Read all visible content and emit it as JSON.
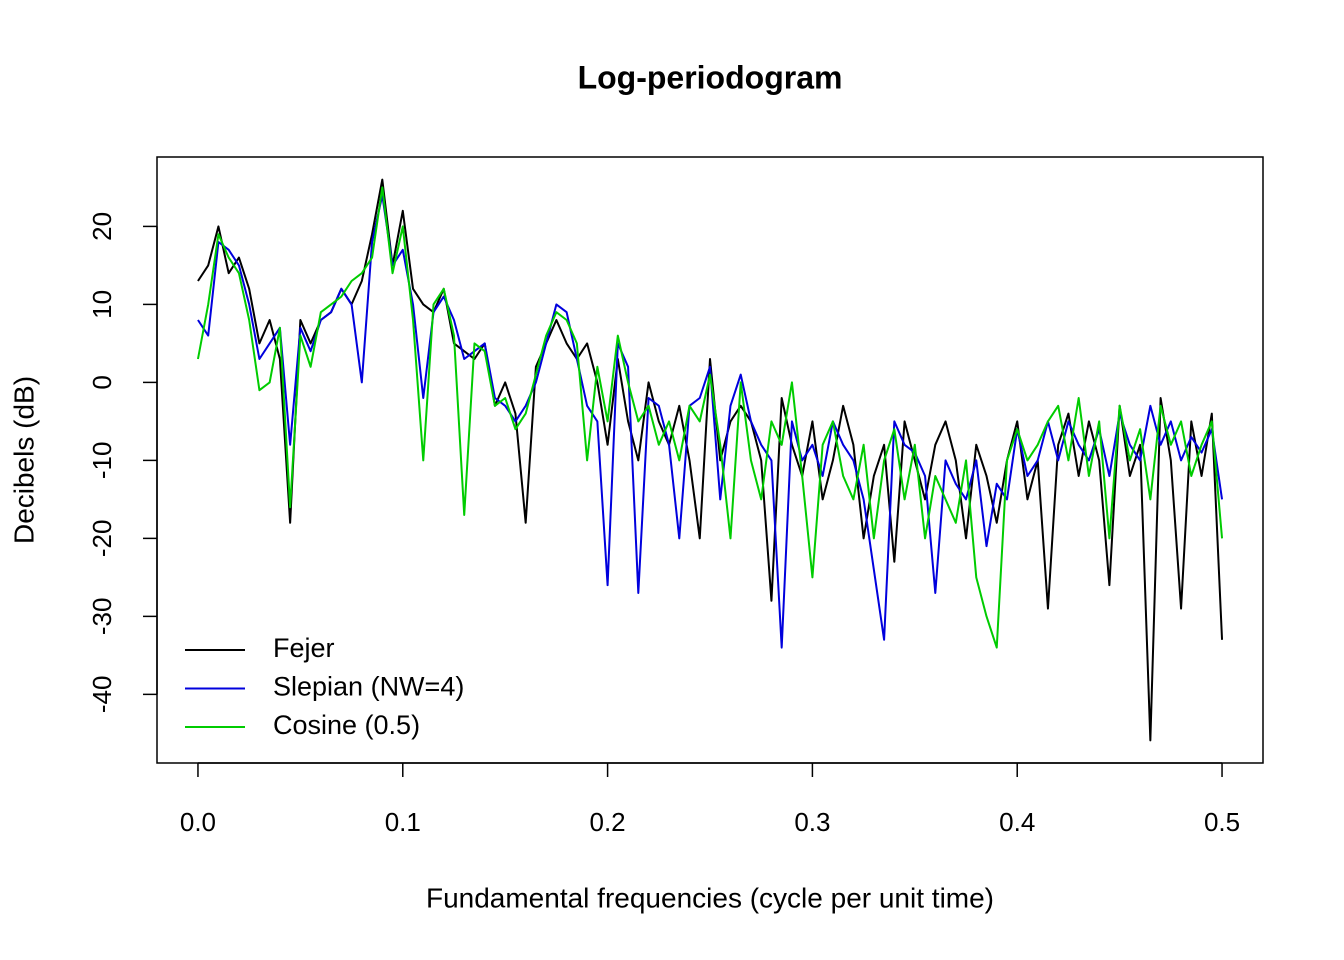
{
  "chart_data": {
    "type": "line",
    "title": "Log-periodogram",
    "x_label": "Fundamental frequencies (cycle per unit time)",
    "y_label": "Decibels (dB)",
    "xlim": [
      -0.02,
      0.52
    ],
    "ylim": [
      -48.8,
      28.9
    ],
    "xticks": [
      {
        "value": 0,
        "label": "0.0"
      },
      0.1,
      0.2,
      0.3,
      0.4,
      0.5
    ],
    "yticks": [
      -40,
      -30,
      -20,
      -10,
      0,
      10,
      20
    ],
    "legend": "bottom-left",
    "x": [
      0,
      0.005,
      0.01,
      0.015,
      0.02,
      0.025,
      0.03,
      0.035,
      0.04,
      0.045,
      0.05,
      0.055,
      0.06,
      0.065,
      0.07,
      0.075,
      0.08,
      0.085,
      0.09,
      0.095,
      0.1,
      0.105,
      0.11,
      0.115,
      0.12,
      0.125,
      0.13,
      0.135,
      0.14,
      0.145,
      0.15,
      0.155,
      0.16,
      0.165,
      0.17,
      0.175,
      0.18,
      0.185,
      0.19,
      0.195,
      0.2,
      0.205,
      0.21,
      0.215,
      0.22,
      0.225,
      0.23,
      0.235,
      0.24,
      0.245,
      0.25,
      0.255,
      0.26,
      0.265,
      0.27,
      0.275,
      0.28,
      0.285,
      0.29,
      0.295,
      0.3,
      0.305,
      0.31,
      0.315,
      0.32,
      0.325,
      0.33,
      0.335,
      0.34,
      0.345,
      0.35,
      0.355,
      0.36,
      0.365,
      0.37,
      0.375,
      0.38,
      0.385,
      0.39,
      0.395,
      0.4,
      0.405,
      0.41,
      0.415,
      0.42,
      0.425,
      0.43,
      0.435,
      0.44,
      0.445,
      0.45,
      0.455,
      0.46,
      0.465,
      0.47,
      0.475,
      0.48,
      0.485,
      0.49,
      0.495,
      0.5
    ],
    "series": [
      {
        "name": "Fejer",
        "color": "#000000",
        "values": [
          13,
          15,
          20,
          14,
          16,
          12,
          5,
          8,
          3,
          -18,
          8,
          5,
          8,
          9,
          12,
          10,
          13,
          19,
          26,
          15,
          22,
          12,
          10,
          9,
          12,
          5,
          4,
          3,
          5,
          -3,
          0,
          -4,
          -18,
          2,
          5,
          8,
          5,
          3,
          5,
          0,
          -8,
          3,
          -5,
          -10,
          0,
          -5,
          -8,
          -3,
          -10,
          -20,
          3,
          -10,
          -5,
          -3,
          -5,
          -10,
          -28,
          -2,
          -8,
          -12,
          -5,
          -15,
          -10,
          -3,
          -8,
          -20,
          -12,
          -8,
          -23,
          -5,
          -10,
          -15,
          -8,
          -5,
          -10,
          -20,
          -8,
          -12,
          -18,
          -10,
          -5,
          -15,
          -10,
          -29,
          -8,
          -4,
          -12,
          -5,
          -10,
          -26,
          -3,
          -12,
          -8,
          -45.9,
          -2,
          -10,
          -29,
          -5,
          -12,
          -4,
          -33
        ]
      },
      {
        "name": "Slepian (NW=4)",
        "color": "#0000dd",
        "values": [
          8,
          6,
          18,
          17,
          15,
          10,
          3,
          5,
          7,
          -8,
          7,
          4,
          8,
          9,
          12,
          10,
          0,
          18,
          24,
          15,
          17,
          10,
          -2,
          9,
          11,
          8,
          3,
          4,
          5,
          -2,
          -3,
          -5,
          -3,
          0,
          5,
          10,
          9,
          3,
          -3,
          -5,
          -26,
          5,
          2,
          -27,
          -2,
          -3,
          -8,
          -20,
          -3,
          -2,
          2,
          -15,
          -3,
          1,
          -5,
          -8,
          -10,
          -34,
          -5,
          -10,
          -8,
          -12,
          -5,
          -8,
          -10,
          -15,
          -24,
          -33,
          -5,
          -8,
          -9,
          -12,
          -27,
          -10,
          -13,
          -15,
          -10,
          -21,
          -13,
          -15,
          -6,
          -12,
          -10,
          -5,
          -10,
          -5,
          -8,
          -10,
          -6,
          -12,
          -4,
          -8,
          -10,
          -3,
          -8,
          -5,
          -10,
          -7,
          -9,
          -6,
          -15
        ]
      },
      {
        "name": "Cosine (0.5)",
        "color": "#00cc00",
        "values": [
          3,
          10,
          19,
          16,
          14,
          8,
          -1,
          0,
          7,
          -16,
          6,
          2,
          9,
          10,
          11,
          13,
          14,
          16,
          25,
          14,
          20,
          8,
          -10,
          10,
          12,
          6,
          -17,
          5,
          4,
          -3,
          -2,
          -6,
          -4,
          1,
          6,
          9,
          8,
          5,
          -10,
          2,
          -5,
          6,
          0,
          -5,
          -3,
          -8,
          -5,
          -10,
          -3,
          -5,
          1,
          -8,
          -20,
          0,
          -10,
          -15,
          -5,
          -8,
          0,
          -12,
          -25,
          -8,
          -5,
          -12,
          -15,
          -8,
          -20,
          -10,
          -6,
          -15,
          -8,
          -20,
          -12,
          -15,
          -18,
          -10,
          -25,
          -30,
          -34,
          -10,
          -6,
          -10,
          -8,
          -5,
          -3,
          -10,
          -2,
          -12,
          -5,
          -20,
          -3,
          -10,
          -6,
          -15,
          -3,
          -8,
          -5,
          -12,
          -8,
          -5,
          -20
        ]
      }
    ]
  }
}
